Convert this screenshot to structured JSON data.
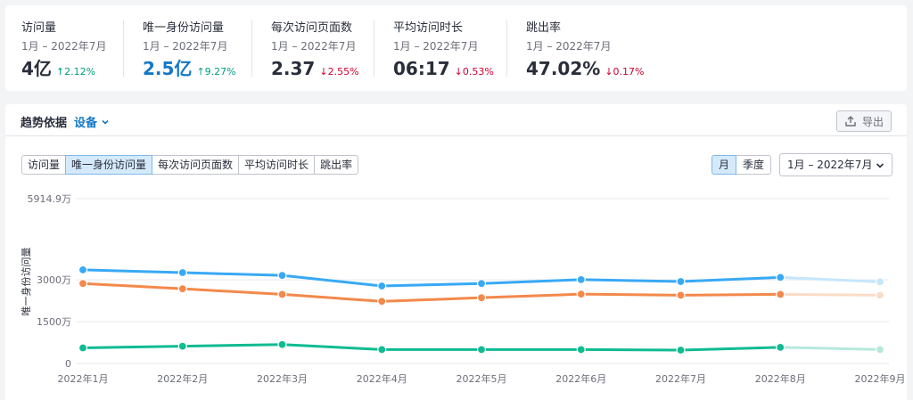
{
  "stats": [
    {
      "title": "访问量",
      "period": "1月 – 2022年7月",
      "value": "4亿",
      "change": "2.12%",
      "direction": "up"
    },
    {
      "title": "唯一身份访问量",
      "period": "1月 – 2022年7月",
      "value": "2.5亿",
      "change": "9.27%",
      "direction": "up"
    },
    {
      "title": "每次访问页面数",
      "period": "1月 – 2022年7月",
      "value": "2.37",
      "change": "2.55%",
      "direction": "down"
    },
    {
      "title": "平均访问时长",
      "period": "1月 – 2022年7月",
      "value": "06:17",
      "change": "0.53%",
      "direction": "down"
    },
    {
      "title": "跳出率",
      "period": "1月 – 2022年7月",
      "value": "47.02%",
      "change": "0.17%",
      "direction": "down"
    }
  ],
  "trend": {
    "title": "趋势依据",
    "dimension": "设备",
    "export_label": "导出",
    "metric_tabs": [
      "访问量",
      "唯一身份访问量",
      "每次访问页面数",
      "平均访问时长",
      "跳出率"
    ],
    "active_metric": 1,
    "granularity_tabs": [
      "月",
      "季度"
    ],
    "active_granularity": 0,
    "date_range": "1月 – 2022年7月"
  },
  "colors": {
    "accent": "#1478c8",
    "up": "#009f81",
    "down": "#d1002f",
    "series": [
      "#38a9f5",
      "#f3894b",
      "#0fbb91"
    ],
    "series_projected": [
      "#c6e6fb",
      "#fbdcc7",
      "#b6e9dc"
    ]
  },
  "icons": {
    "export": "upload-icon",
    "dropdown": "chevron-down-icon",
    "up": "arrow-up-icon",
    "down": "arrow-down-icon"
  },
  "chart_data": {
    "type": "line",
    "ylabel": "唯一身份访问量",
    "ylim": [
      0,
      59149000
    ],
    "y_ticks": [
      {
        "value": 0,
        "label": "0"
      },
      {
        "value": 15000000,
        "label": "1500万"
      },
      {
        "value": 30000000,
        "label": "3000万"
      },
      {
        "value": 59149000,
        "label": "5914.9万"
      }
    ],
    "categories": [
      "2022年1月",
      "2022年2月",
      "2022年3月",
      "2022年4月",
      "2022年5月",
      "2022年6月",
      "2022年7月",
      "2022年8月",
      "2022年9月"
    ],
    "projected_from_index": 7,
    "series": [
      {
        "values": [
          33600000,
          32600000,
          31600000,
          27800000,
          28700000,
          30100000,
          29400000,
          30900000,
          29300000
        ]
      },
      {
        "values": [
          28700000,
          26800000,
          24800000,
          22300000,
          23600000,
          24900000,
          24500000,
          24800000,
          24500000
        ]
      },
      {
        "values": [
          5600000,
          6200000,
          6800000,
          5000000,
          5000000,
          5000000,
          4800000,
          5800000,
          5000000
        ]
      }
    ]
  }
}
